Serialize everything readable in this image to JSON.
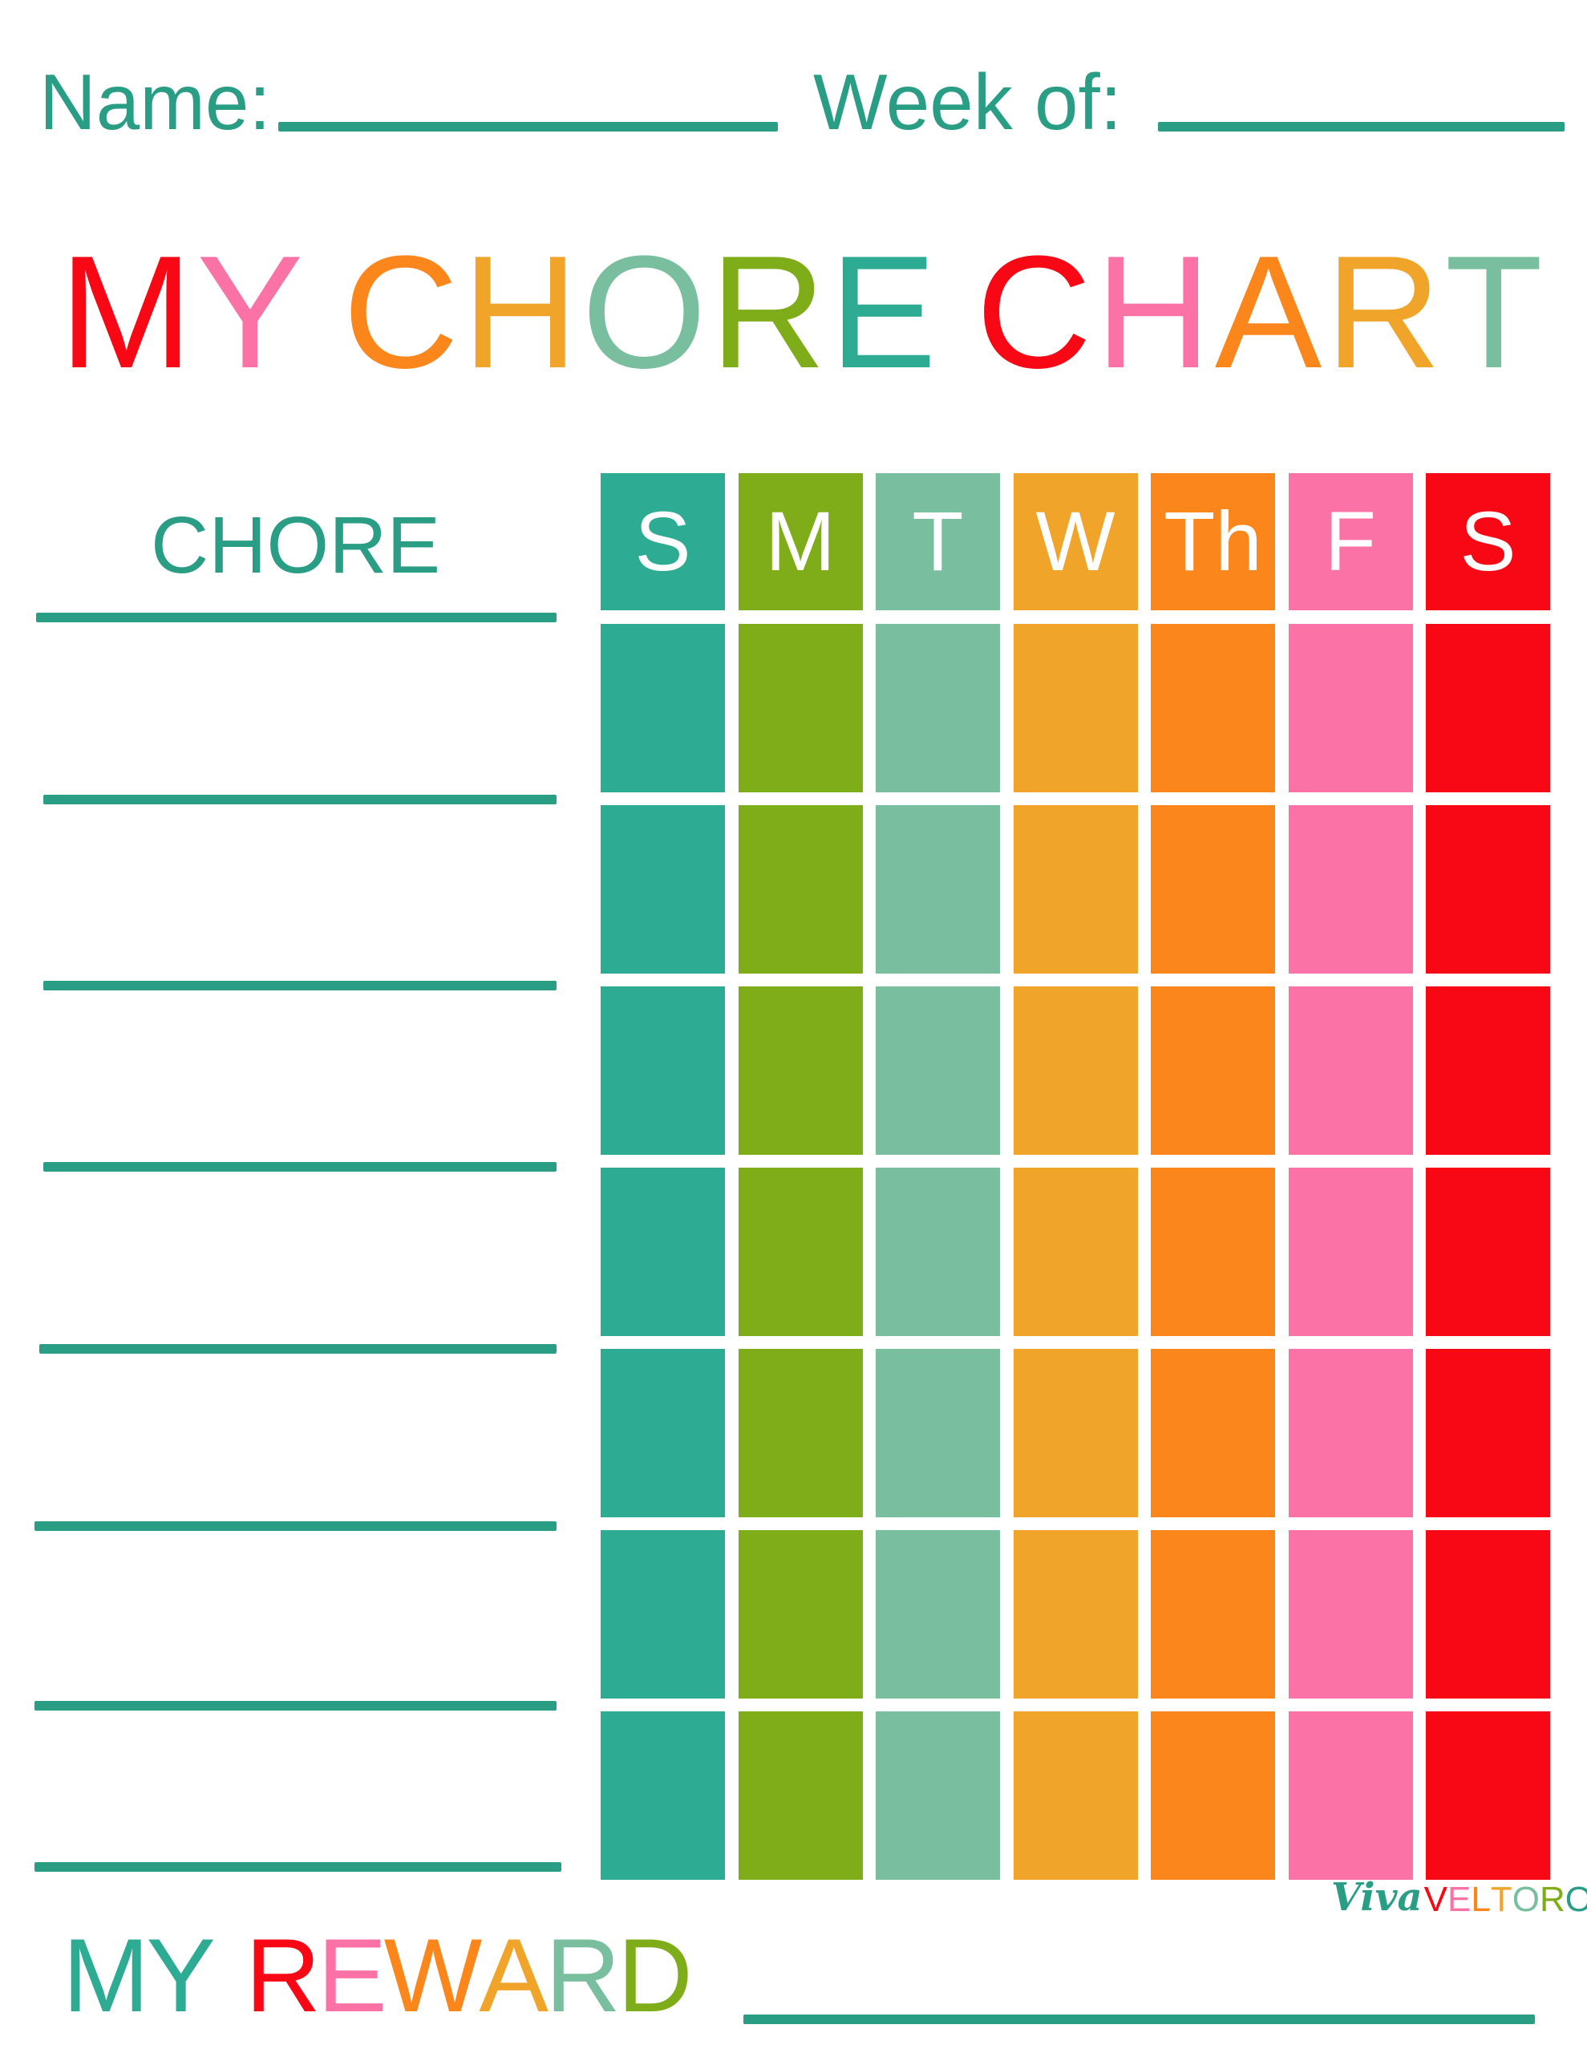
{
  "header": {
    "name_label": "Name:",
    "week_label": "Week of:"
  },
  "title": {
    "text": "MY CHORE CHART",
    "letters": [
      {
        "ch": "M",
        "color": "#F80814"
      },
      {
        "ch": "Y",
        "color": "#FB73A6"
      },
      {
        "ch": " ",
        "color": "#fff"
      },
      {
        "ch": "C",
        "color": "#FB861C"
      },
      {
        "ch": "H",
        "color": "#F0A52A"
      },
      {
        "ch": "O",
        "color": "#79BF9F"
      },
      {
        "ch": "R",
        "color": "#7FAD19"
      },
      {
        "ch": "E",
        "color": "#2EAC93"
      },
      {
        "ch": " ",
        "color": "#fff"
      },
      {
        "ch": "C",
        "color": "#F80814"
      },
      {
        "ch": "H",
        "color": "#FB73A6"
      },
      {
        "ch": "A",
        "color": "#FB861C"
      },
      {
        "ch": "R",
        "color": "#F0A52A"
      },
      {
        "ch": "T",
        "color": "#79BF9F"
      }
    ]
  },
  "chore_header": "CHORE",
  "days": [
    {
      "label": "S",
      "color": "#2EAC93"
    },
    {
      "label": "M",
      "color": "#7FAD19"
    },
    {
      "label": "T",
      "color": "#79BF9F"
    },
    {
      "label": "W",
      "color": "#F0A52A"
    },
    {
      "label": "Th",
      "color": "#FB861C"
    },
    {
      "label": "F",
      "color": "#FB73A6"
    },
    {
      "label": "S",
      "color": "#F80814"
    }
  ],
  "row_count": 7,
  "reward": {
    "text": "MY REWARD",
    "letters": [
      {
        "ch": "M",
        "color": "#2EAC93"
      },
      {
        "ch": "Y",
        "color": "#2EAC93"
      },
      {
        "ch": " ",
        "color": "#fff"
      },
      {
        "ch": "R",
        "color": "#F80814"
      },
      {
        "ch": "E",
        "color": "#FB73A6"
      },
      {
        "ch": "W",
        "color": "#FB861C"
      },
      {
        "ch": "A",
        "color": "#F0A52A"
      },
      {
        "ch": "R",
        "color": "#79BF9F"
      },
      {
        "ch": "D",
        "color": "#7FAD19"
      }
    ]
  },
  "logo": {
    "viva": "Viva",
    "letters": [
      {
        "ch": "V",
        "color": "#F80814"
      },
      {
        "ch": "E",
        "color": "#FB73A6"
      },
      {
        "ch": "L",
        "color": "#FB861C"
      },
      {
        "ch": "T",
        "color": "#F0A52A"
      },
      {
        "ch": "O",
        "color": "#79BF9F"
      },
      {
        "ch": "R",
        "color": "#7FAD19"
      },
      {
        "ch": "O",
        "color": "#2A9D85"
      }
    ]
  }
}
